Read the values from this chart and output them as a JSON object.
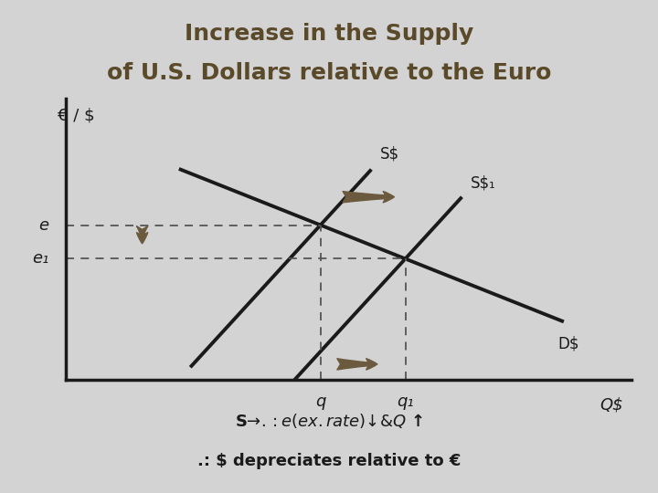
{
  "title_line1": "Increase in the Supply",
  "title_line2": "of U.S. Dollars relative to the Euro",
  "bg_color": "#d3d3d3",
  "line_color": "#1a1a1a",
  "dashed_color": "#555555",
  "arrow_color": "#6b5a3e",
  "title_color": "#5a4a2a",
  "text_color": "#1a1a1a",
  "ylabel": "€ / $",
  "xlabel": "Q$",
  "e_label": "e",
  "e1_label": "e₁",
  "q_label": "q",
  "q1_label": "q₁",
  "S_label": "S$",
  "S1_label": "S$₁",
  "D_label": "D$",
  "annotation1": "S$ → .: e (ex. rate) ↓ & Q$ ↑",
  "annotation2": ".: $ depreciates relative to €",
  "xlim": [
    0,
    10
  ],
  "ylim": [
    0,
    10
  ],
  "eq1_x": 4.5,
  "eq1_y": 5.5,
  "eq2_x": 6.0,
  "eq2_y": 4.3,
  "s1_slope": 2.2,
  "d_slope": -0.85
}
